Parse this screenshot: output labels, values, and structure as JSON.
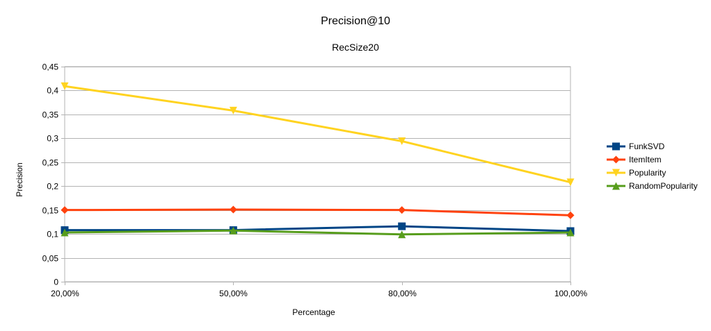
{
  "chart_data": {
    "type": "line",
    "title": "Precision@10",
    "subtitle": "RecSize20",
    "xlabel": "Percentage",
    "ylabel": "Precision",
    "categories": [
      "20,00%",
      "50,00%",
      "80,00%",
      "100,00%"
    ],
    "ylim": [
      0,
      0.45
    ],
    "yticks": [
      0,
      0.05,
      0.1,
      0.15,
      0.2,
      0.25,
      0.3,
      0.35,
      0.4,
      0.45
    ],
    "ytick_labels": [
      "0",
      "0,05",
      "0,1",
      "0,15",
      "0,2",
      "0,25",
      "0,3",
      "0,35",
      "0,4",
      "0,45"
    ],
    "grid": true,
    "legend_position": "right",
    "series": [
      {
        "name": "FunkSVD",
        "values": [
          0.108,
          0.108,
          0.116,
          0.106
        ],
        "color": "#004586",
        "marker": "square"
      },
      {
        "name": "ItemItem",
        "values": [
          0.15,
          0.151,
          0.15,
          0.139
        ],
        "color": "#ff420e",
        "marker": "diamond"
      },
      {
        "name": "Popularity",
        "values": [
          0.409,
          0.358,
          0.294,
          0.208
        ],
        "color": "#ffd320",
        "marker": "triangle-down"
      },
      {
        "name": "RandomPopularity",
        "values": [
          0.103,
          0.107,
          0.099,
          0.103
        ],
        "color": "#579d1c",
        "marker": "triangle-up"
      }
    ]
  }
}
